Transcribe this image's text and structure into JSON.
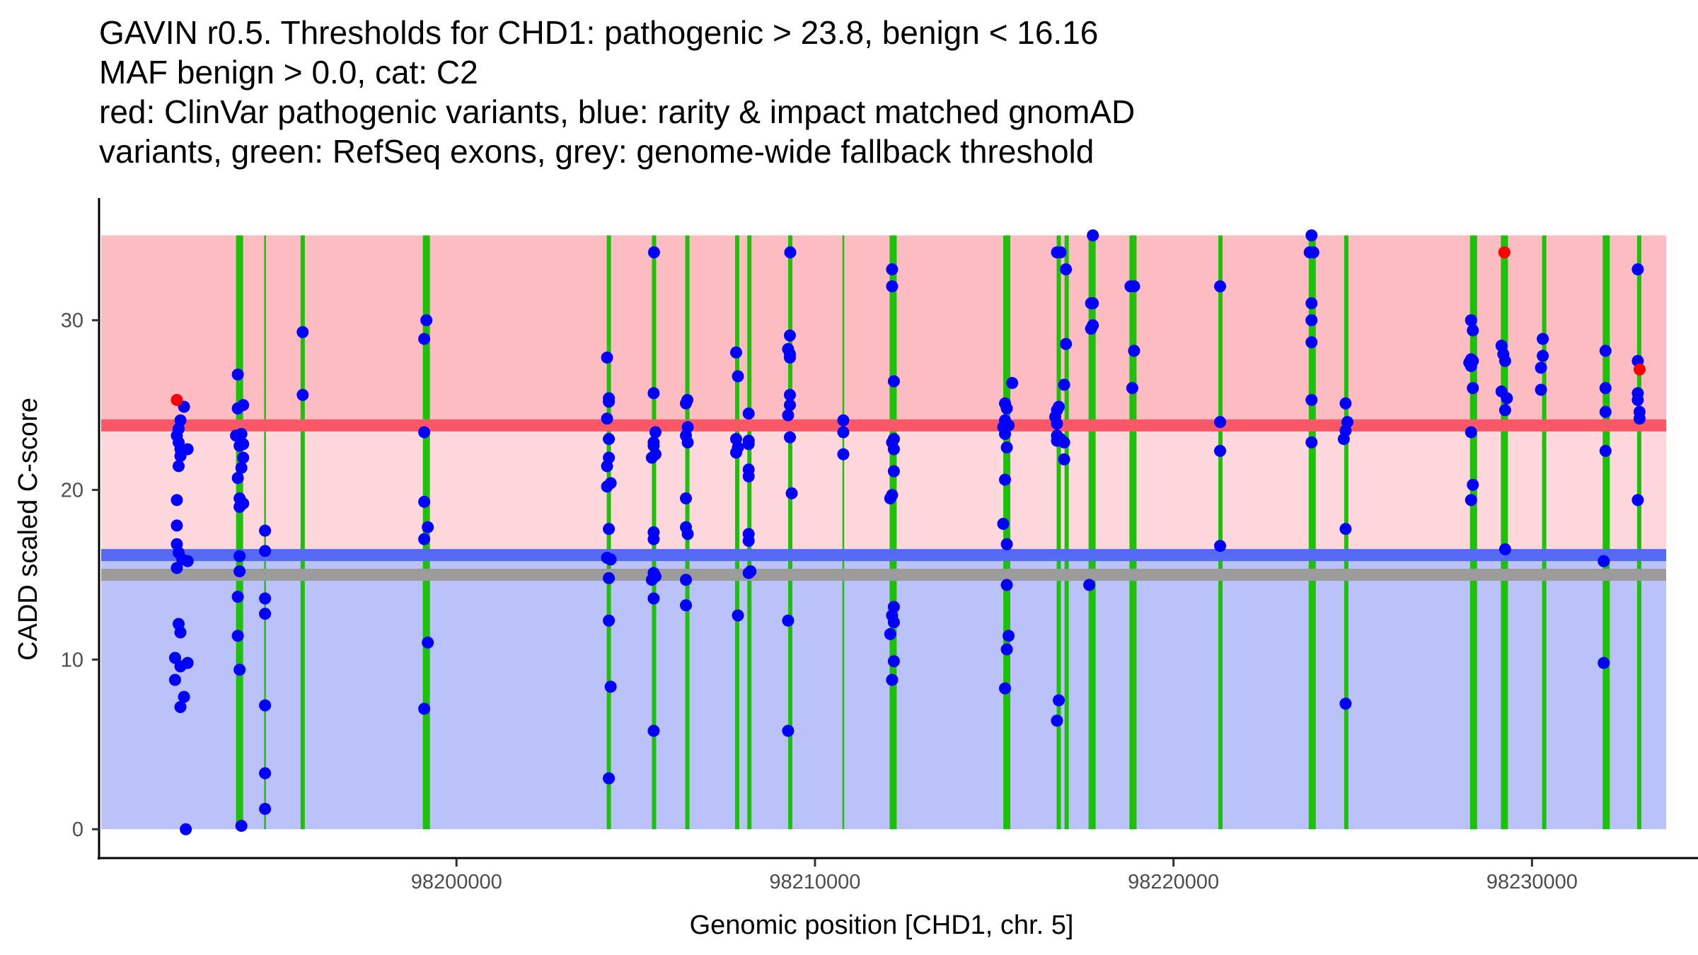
{
  "chart_data": {
    "type": "scatter",
    "title_lines": [
      "GAVIN r0.5. Thresholds for CHD1: pathogenic > 23.8, benign < 16.16",
      "MAF benign > 0.0, cat: C2",
      "red: ClinVar pathogenic variants, blue: rarity & impact matched gnomAD",
      "variants, green: RefSeq exons, grey: genome-wide fallback threshold"
    ],
    "xlabel": "Genomic position [CHD1, chr. 5]",
    "ylabel": "CADD scaled C-score",
    "xlim": [
      98190030,
      98234630
    ],
    "ylim": [
      -1.7,
      37.2
    ],
    "x_ticks": [
      98200000,
      98210000,
      98220000,
      98230000
    ],
    "x_tick_labels": [
      "98200000",
      "98210000",
      "98220000",
      "98230000"
    ],
    "y_ticks": [
      0,
      10,
      20,
      30
    ],
    "y_tick_labels": [
      "0",
      "10",
      "20",
      "30"
    ],
    "grid": false,
    "regions": [
      {
        "name": "pathogenic-zone",
        "ymin": 23.8,
        "ymax": 35,
        "color": "#fcbcc2"
      },
      {
        "name": "vus-zone",
        "ymin": 16.16,
        "ymax": 23.8,
        "color": "#fdd7dc"
      },
      {
        "name": "benign-zone",
        "ymin": 0,
        "ymax": 16.16,
        "color": "#bbc1f9"
      }
    ],
    "thresholds": [
      {
        "name": "pathogenic-threshold",
        "y": 23.8,
        "color": "#fc5766"
      },
      {
        "name": "benign-threshold",
        "y": 16.16,
        "color": "#5469f4"
      },
      {
        "name": "fallback-threshold",
        "y": 15.0,
        "color": "#9b9b9b"
      }
    ],
    "exon_color": "#1ec10a",
    "exons": [
      {
        "x": 98193950,
        "w": "thick"
      },
      {
        "x": 98194660,
        "w": "thin"
      },
      {
        "x": 98195710,
        "w": "mid"
      },
      {
        "x": 98199160,
        "w": "thick"
      },
      {
        "x": 98204250,
        "w": "mid"
      },
      {
        "x": 98205510,
        "w": "mid"
      },
      {
        "x": 98206440,
        "w": "mid"
      },
      {
        "x": 98207830,
        "w": "mid"
      },
      {
        "x": 98208170,
        "w": "mid"
      },
      {
        "x": 98209310,
        "w": "mid"
      },
      {
        "x": 98210790,
        "w": "thin"
      },
      {
        "x": 98212180,
        "w": "thick"
      },
      {
        "x": 98215350,
        "w": "thick"
      },
      {
        "x": 98216800,
        "w": "mid"
      },
      {
        "x": 98217020,
        "w": "mid"
      },
      {
        "x": 98217730,
        "w": "thick"
      },
      {
        "x": 98218870,
        "w": "thick"
      },
      {
        "x": 98221310,
        "w": "mid"
      },
      {
        "x": 98223870,
        "w": "thick"
      },
      {
        "x": 98224820,
        "w": "mid"
      },
      {
        "x": 98228370,
        "w": "thick"
      },
      {
        "x": 98229230,
        "w": "thick"
      },
      {
        "x": 98230340,
        "w": "mid"
      },
      {
        "x": 98232070,
        "w": "thick"
      },
      {
        "x": 98232990,
        "w": "mid"
      }
    ],
    "series": [
      {
        "name": "ClinVar pathogenic variants",
        "color": "#ff0000",
        "points": [
          [
            98192200,
            25.3
          ],
          [
            98229230,
            34.0
          ],
          [
            98233000,
            27.1
          ]
        ]
      },
      {
        "name": "gnomAD matched variants",
        "color": "#0000ff",
        "points": [
          [
            98192400,
            24.9
          ],
          [
            98192300,
            24.1
          ],
          [
            98192250,
            23.6
          ],
          [
            98192200,
            23.2
          ],
          [
            98192250,
            22.8
          ],
          [
            98192300,
            22.4
          ],
          [
            98192500,
            22.4
          ],
          [
            98192300,
            22.0
          ],
          [
            98192250,
            21.4
          ],
          [
            98192200,
            19.4
          ],
          [
            98192200,
            17.9
          ],
          [
            98192200,
            16.8
          ],
          [
            98192250,
            16.3
          ],
          [
            98192350,
            15.9
          ],
          [
            98192500,
            15.8
          ],
          [
            98192200,
            15.4
          ],
          [
            98192250,
            12.1
          ],
          [
            98192300,
            11.6
          ],
          [
            98192150,
            10.1
          ],
          [
            98192300,
            9.6
          ],
          [
            98192500,
            9.8
          ],
          [
            98192150,
            8.8
          ],
          [
            98192400,
            7.8
          ],
          [
            98192300,
            7.2
          ],
          [
            98192450,
            0.0
          ],
          [
            98193900,
            26.8
          ],
          [
            98193900,
            24.8
          ],
          [
            98194050,
            25.0
          ],
          [
            98193850,
            23.2
          ],
          [
            98194000,
            23.3
          ],
          [
            98193950,
            22.6
          ],
          [
            98194050,
            22.7
          ],
          [
            98194050,
            21.9
          ],
          [
            98194000,
            21.3
          ],
          [
            98193900,
            20.7
          ],
          [
            98193950,
            19.5
          ],
          [
            98193950,
            19.0
          ],
          [
            98194050,
            19.2
          ],
          [
            98193950,
            16.1
          ],
          [
            98193950,
            15.2
          ],
          [
            98193900,
            13.7
          ],
          [
            98193900,
            11.4
          ],
          [
            98193950,
            9.4
          ],
          [
            98194000,
            0.2
          ],
          [
            98194660,
            17.6
          ],
          [
            98194660,
            16.4
          ],
          [
            98194660,
            13.6
          ],
          [
            98194660,
            12.7
          ],
          [
            98194660,
            7.3
          ],
          [
            98194660,
            3.3
          ],
          [
            98194660,
            1.2
          ],
          [
            98195710,
            29.3
          ],
          [
            98195710,
            25.6
          ],
          [
            98199160,
            30.0
          ],
          [
            98199100,
            28.9
          ],
          [
            98199100,
            23.4
          ],
          [
            98199100,
            19.3
          ],
          [
            98199200,
            17.8
          ],
          [
            98199100,
            17.1
          ],
          [
            98199200,
            11.0
          ],
          [
            98199100,
            7.1
          ],
          [
            98204200,
            27.8
          ],
          [
            98204250,
            25.4
          ],
          [
            98204250,
            25.2
          ],
          [
            98204200,
            24.2
          ],
          [
            98204250,
            23.0
          ],
          [
            98204250,
            21.9
          ],
          [
            98204200,
            21.4
          ],
          [
            98204200,
            20.2
          ],
          [
            98204300,
            20.4
          ],
          [
            98204250,
            17.7
          ],
          [
            98204200,
            16.0
          ],
          [
            98204300,
            15.9
          ],
          [
            98204250,
            14.8
          ],
          [
            98204250,
            12.3
          ],
          [
            98204300,
            8.4
          ],
          [
            98204250,
            3.0
          ],
          [
            98205500,
            25.7
          ],
          [
            98205500,
            22.6
          ],
          [
            98205500,
            22.8
          ],
          [
            98205550,
            23.4
          ],
          [
            98205550,
            22.1
          ],
          [
            98205450,
            21.9
          ],
          [
            98205500,
            17.5
          ],
          [
            98205500,
            17.1
          ],
          [
            98205500,
            15.1
          ],
          [
            98205550,
            14.9
          ],
          [
            98205450,
            14.7
          ],
          [
            98205500,
            13.6
          ],
          [
            98205510,
            34.0
          ],
          [
            98205500,
            5.8
          ],
          [
            98206440,
            25.3
          ],
          [
            98206400,
            25.1
          ],
          [
            98206450,
            23.7
          ],
          [
            98206400,
            23.2
          ],
          [
            98206450,
            22.8
          ],
          [
            98206400,
            19.5
          ],
          [
            98206400,
            17.8
          ],
          [
            98206450,
            17.4
          ],
          [
            98206400,
            14.7
          ],
          [
            98206400,
            13.2
          ],
          [
            98207800,
            28.1
          ],
          [
            98207850,
            26.7
          ],
          [
            98207800,
            23.0
          ],
          [
            98207850,
            22.5
          ],
          [
            98207800,
            22.2
          ],
          [
            98207850,
            12.6
          ],
          [
            98208150,
            24.5
          ],
          [
            98208150,
            22.9
          ],
          [
            98208150,
            22.7
          ],
          [
            98208150,
            21.2
          ],
          [
            98208150,
            20.8
          ],
          [
            98208150,
            17.4
          ],
          [
            98208150,
            17.0
          ],
          [
            98208200,
            15.2
          ],
          [
            98208150,
            15.1
          ],
          [
            98209310,
            34.0
          ],
          [
            98209300,
            29.1
          ],
          [
            98209250,
            28.3
          ],
          [
            98209300,
            28.0
          ],
          [
            98209300,
            27.8
          ],
          [
            98209300,
            25.6
          ],
          [
            98209300,
            25.0
          ],
          [
            98209250,
            24.4
          ],
          [
            98209300,
            23.1
          ],
          [
            98209350,
            19.8
          ],
          [
            98209250,
            12.3
          ],
          [
            98209250,
            5.8
          ],
          [
            98210790,
            24.1
          ],
          [
            98210790,
            23.4
          ],
          [
            98210790,
            22.1
          ],
          [
            98212150,
            33.0
          ],
          [
            98212150,
            32.0
          ],
          [
            98212200,
            26.4
          ],
          [
            98212200,
            23.0
          ],
          [
            98212150,
            22.8
          ],
          [
            98212200,
            22.4
          ],
          [
            98212200,
            21.1
          ],
          [
            98212150,
            19.7
          ],
          [
            98212100,
            19.5
          ],
          [
            98212200,
            13.1
          ],
          [
            98212150,
            12.6
          ],
          [
            98212200,
            12.2
          ],
          [
            98212100,
            11.5
          ],
          [
            98212200,
            9.9
          ],
          [
            98212150,
            8.8
          ],
          [
            98215300,
            25.1
          ],
          [
            98215350,
            24.8
          ],
          [
            98215300,
            24.1
          ],
          [
            98215250,
            23.7
          ],
          [
            98215400,
            23.8
          ],
          [
            98215300,
            23.3
          ],
          [
            98215350,
            22.5
          ],
          [
            98215300,
            20.6
          ],
          [
            98215250,
            18.0
          ],
          [
            98215350,
            16.8
          ],
          [
            98215350,
            14.4
          ],
          [
            98215400,
            11.4
          ],
          [
            98215350,
            10.6
          ],
          [
            98215300,
            8.3
          ],
          [
            98215500,
            26.3
          ],
          [
            98216750,
            34.0
          ],
          [
            98216850,
            34.0
          ],
          [
            98216800,
            24.9
          ],
          [
            98216750,
            24.7
          ],
          [
            98216700,
            24.3
          ],
          [
            98216750,
            23.9
          ],
          [
            98216750,
            23.2
          ],
          [
            98216850,
            23.0
          ],
          [
            98216750,
            22.9
          ],
          [
            98216800,
            7.6
          ],
          [
            98216750,
            6.4
          ],
          [
            98217000,
            33.0
          ],
          [
            98217000,
            28.6
          ],
          [
            98216950,
            26.2
          ],
          [
            98216950,
            22.8
          ],
          [
            98216950,
            21.8
          ],
          [
            98217750,
            35.0
          ],
          [
            98217700,
            31.0
          ],
          [
            98217750,
            31.0
          ],
          [
            98217750,
            29.7
          ],
          [
            98217700,
            29.5
          ],
          [
            98217650,
            14.4
          ],
          [
            98218800,
            32.0
          ],
          [
            98218900,
            32.0
          ],
          [
            98218900,
            28.2
          ],
          [
            98218850,
            26.0
          ],
          [
            98221300,
            32.0
          ],
          [
            98221300,
            24.0
          ],
          [
            98221300,
            22.3
          ],
          [
            98221300,
            16.7
          ],
          [
            98223850,
            35.0
          ],
          [
            98223800,
            34.0
          ],
          [
            98223900,
            34.0
          ],
          [
            98223850,
            31.0
          ],
          [
            98223850,
            30.0
          ],
          [
            98223850,
            28.7
          ],
          [
            98223850,
            25.3
          ],
          [
            98223850,
            22.8
          ],
          [
            98224800,
            25.1
          ],
          [
            98224850,
            24.0
          ],
          [
            98224800,
            23.5
          ],
          [
            98224750,
            23.0
          ],
          [
            98224800,
            17.7
          ],
          [
            98224800,
            7.4
          ],
          [
            98228300,
            30.0
          ],
          [
            98228350,
            29.4
          ],
          [
            98228300,
            27.7
          ],
          [
            98228250,
            27.5
          ],
          [
            98228300,
            27.3
          ],
          [
            98228350,
            26.0
          ],
          [
            98228350,
            27.6
          ],
          [
            98228300,
            23.4
          ],
          [
            98228350,
            20.3
          ],
          [
            98228300,
            19.4
          ],
          [
            98229150,
            28.5
          ],
          [
            98229200,
            28.0
          ],
          [
            98229250,
            27.6
          ],
          [
            98229150,
            25.8
          ],
          [
            98229300,
            25.4
          ],
          [
            98229250,
            24.7
          ],
          [
            98229250,
            16.5
          ],
          [
            98230300,
            28.9
          ],
          [
            98230300,
            27.9
          ],
          [
            98230250,
            27.2
          ],
          [
            98230250,
            25.9
          ],
          [
            98232050,
            28.2
          ],
          [
            98232050,
            26.0
          ],
          [
            98232050,
            24.6
          ],
          [
            98232050,
            22.3
          ],
          [
            98232000,
            15.8
          ],
          [
            98232000,
            9.8
          ],
          [
            98232950,
            33.0
          ],
          [
            98232950,
            27.6
          ],
          [
            98232950,
            25.7
          ],
          [
            98232950,
            25.3
          ],
          [
            98233000,
            24.6
          ],
          [
            98233000,
            24.2
          ],
          [
            98232950,
            19.4
          ]
        ]
      }
    ]
  }
}
